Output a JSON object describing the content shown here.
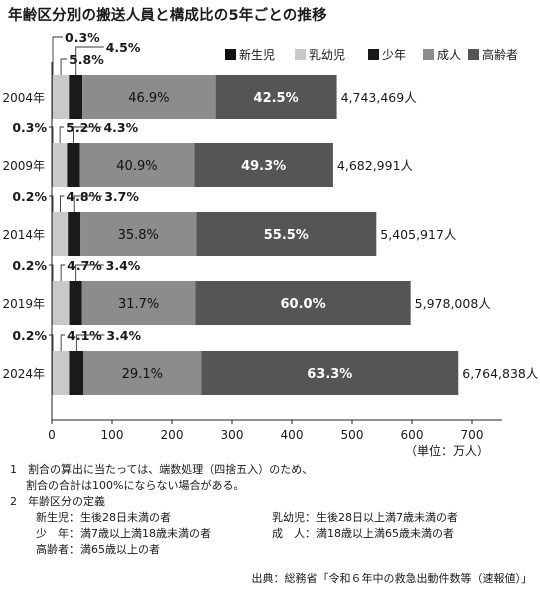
{
  "title": "年齢区分別の搬送人員と構成比の5年ごとの推移",
  "chart_data": {
    "type": "bar",
    "orientation": "horizontal",
    "stacked": true,
    "categories": [
      "2004年",
      "2009年",
      "2014年",
      "2019年",
      "2024年"
    ],
    "series": [
      {
        "name": "新生児",
        "color": "#111111",
        "pct_labels": [
          "0.3%",
          "0.3%",
          "0.2%",
          "0.2%",
          "0.2%"
        ],
        "values": [
          1.4,
          1.4,
          1.1,
          1.2,
          1.4
        ]
      },
      {
        "name": "乳幼児",
        "color": "#c9c9c9",
        "pct_labels": [
          "5.8%",
          "5.2%",
          "4.8%",
          "4.7%",
          "4.1%"
        ],
        "values": [
          27.5,
          24.3,
          25.9,
          28.1,
          27.7
        ]
      },
      {
        "name": "少年",
        "color": "#1a1a1a",
        "pct_labels": [
          "4.5%",
          "4.3%",
          "3.7%",
          "3.4%",
          "3.4%"
        ],
        "values": [
          21.3,
          20.1,
          20.0,
          20.3,
          23.0
        ]
      },
      {
        "name": "成人",
        "color": "#8c8c8c",
        "pct_labels": [
          "46.9%",
          "40.9%",
          "35.8%",
          "31.7%",
          "29.1%"
        ],
        "values": [
          222.5,
          191.5,
          193.5,
          189.5,
          196.8
        ]
      },
      {
        "name": "高齢者",
        "color": "#555555",
        "pct_labels": [
          "42.5%",
          "49.3%",
          "55.5%",
          "60.0%",
          "63.3%"
        ],
        "values": [
          201.6,
          230.9,
          300.0,
          358.7,
          428.2
        ]
      }
    ],
    "totals": [
      "4,743,469人",
      "4,682,991人",
      "5,405,917人",
      "5,978,008人",
      "6,764,838人"
    ],
    "total_values": [
      474.3,
      468.3,
      540.6,
      597.8,
      676.5
    ],
    "xlim": [
      0,
      750
    ],
    "xticks": [
      "0",
      "100",
      "200",
      "300",
      "400",
      "500",
      "600",
      "700"
    ],
    "xtick_values": [
      0,
      100,
      200,
      300,
      400,
      500,
      600,
      700
    ],
    "unit_label": "（単位：万人）",
    "legend_position": "top-right",
    "grid": false
  },
  "notes": {
    "line1": "1　割合の算出に当たっては、端数処理（四捨五入）のため、",
    "line2": "割合の合計は100%にならない場合がある。",
    "line3": "2　年齢区分の定義",
    "defs": [
      {
        "left": "新生児：生後28日未満の者",
        "right": "乳幼児：生後28日以上満7歳未満の者"
      },
      {
        "left": "少　年：満7歳以上満18歳未満の者",
        "right": "成　人：満18歳以上満65歳未満の者"
      },
      {
        "left": "高齢者：満65歳以上の者",
        "right": ""
      }
    ]
  },
  "source": "出典：総務省「令和６年中の救急出動件数等（速報値）」"
}
